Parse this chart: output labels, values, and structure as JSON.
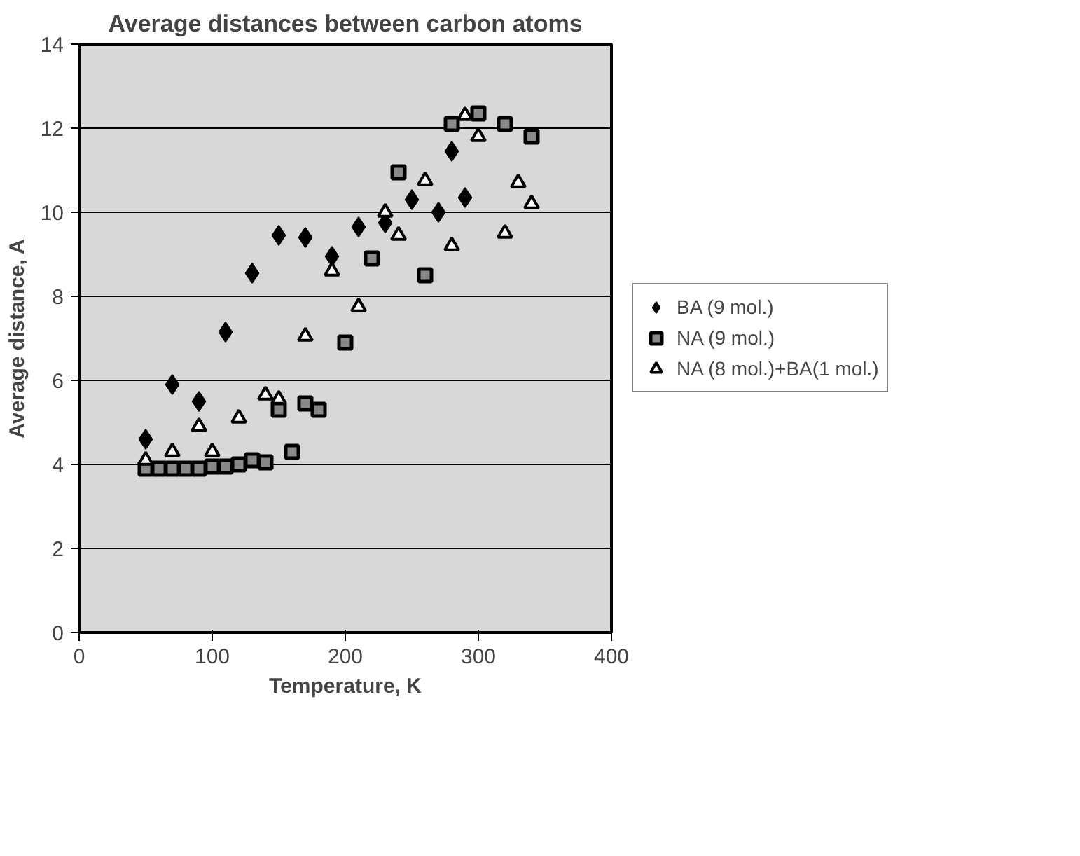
{
  "chart_data": {
    "type": "scatter",
    "title": "Average distances between carbon atoms",
    "xlabel": "Temperature, K",
    "ylabel": "Average distance, A",
    "xlim": [
      0,
      400
    ],
    "xticks": [
      0,
      100,
      200,
      300,
      400
    ],
    "ylim": [
      0,
      14
    ],
    "yticks": [
      0,
      2,
      4,
      6,
      8,
      10,
      12,
      14
    ],
    "grid": "y",
    "legend": "right",
    "series": [
      {
        "name": "BA (9 mol.)",
        "color": "#000000",
        "marker": "diamond",
        "x": [
          50,
          70,
          90,
          110,
          130,
          150,
          170,
          190,
          210,
          230,
          250,
          270,
          280,
          290
        ],
        "values": [
          4.6,
          5.9,
          5.5,
          7.15,
          8.55,
          9.45,
          9.4,
          8.95,
          9.65,
          9.75,
          10.3,
          10.0,
          11.45,
          10.35
        ]
      },
      {
        "name": "NA (9 mol.)",
        "color": "#000000",
        "marker": "square",
        "x": [
          50,
          60,
          70,
          80,
          90,
          100,
          110,
          120,
          130,
          140,
          150,
          160,
          170,
          180,
          200,
          220,
          240,
          260,
          280,
          300,
          320,
          340
        ],
        "values": [
          3.9,
          3.9,
          3.9,
          3.9,
          3.9,
          3.95,
          3.95,
          4.0,
          4.1,
          4.05,
          5.3,
          4.3,
          5.45,
          5.3,
          6.9,
          8.9,
          10.95,
          8.5,
          12.1,
          12.35,
          12.1,
          11.8
        ]
      },
      {
        "name": "NA (8 mol.)+BA(1 mol.)",
        "color": "#000000",
        "marker": "triangle",
        "x": [
          50,
          70,
          90,
          100,
          120,
          140,
          150,
          170,
          190,
          210,
          230,
          240,
          260,
          280,
          290,
          300,
          320,
          330,
          340
        ],
        "values": [
          4.1,
          4.3,
          4.9,
          4.3,
          5.1,
          5.65,
          5.55,
          7.05,
          8.6,
          7.75,
          10.0,
          9.45,
          10.75,
          9.2,
          12.3,
          11.8,
          9.5,
          10.7,
          10.2
        ]
      }
    ]
  }
}
